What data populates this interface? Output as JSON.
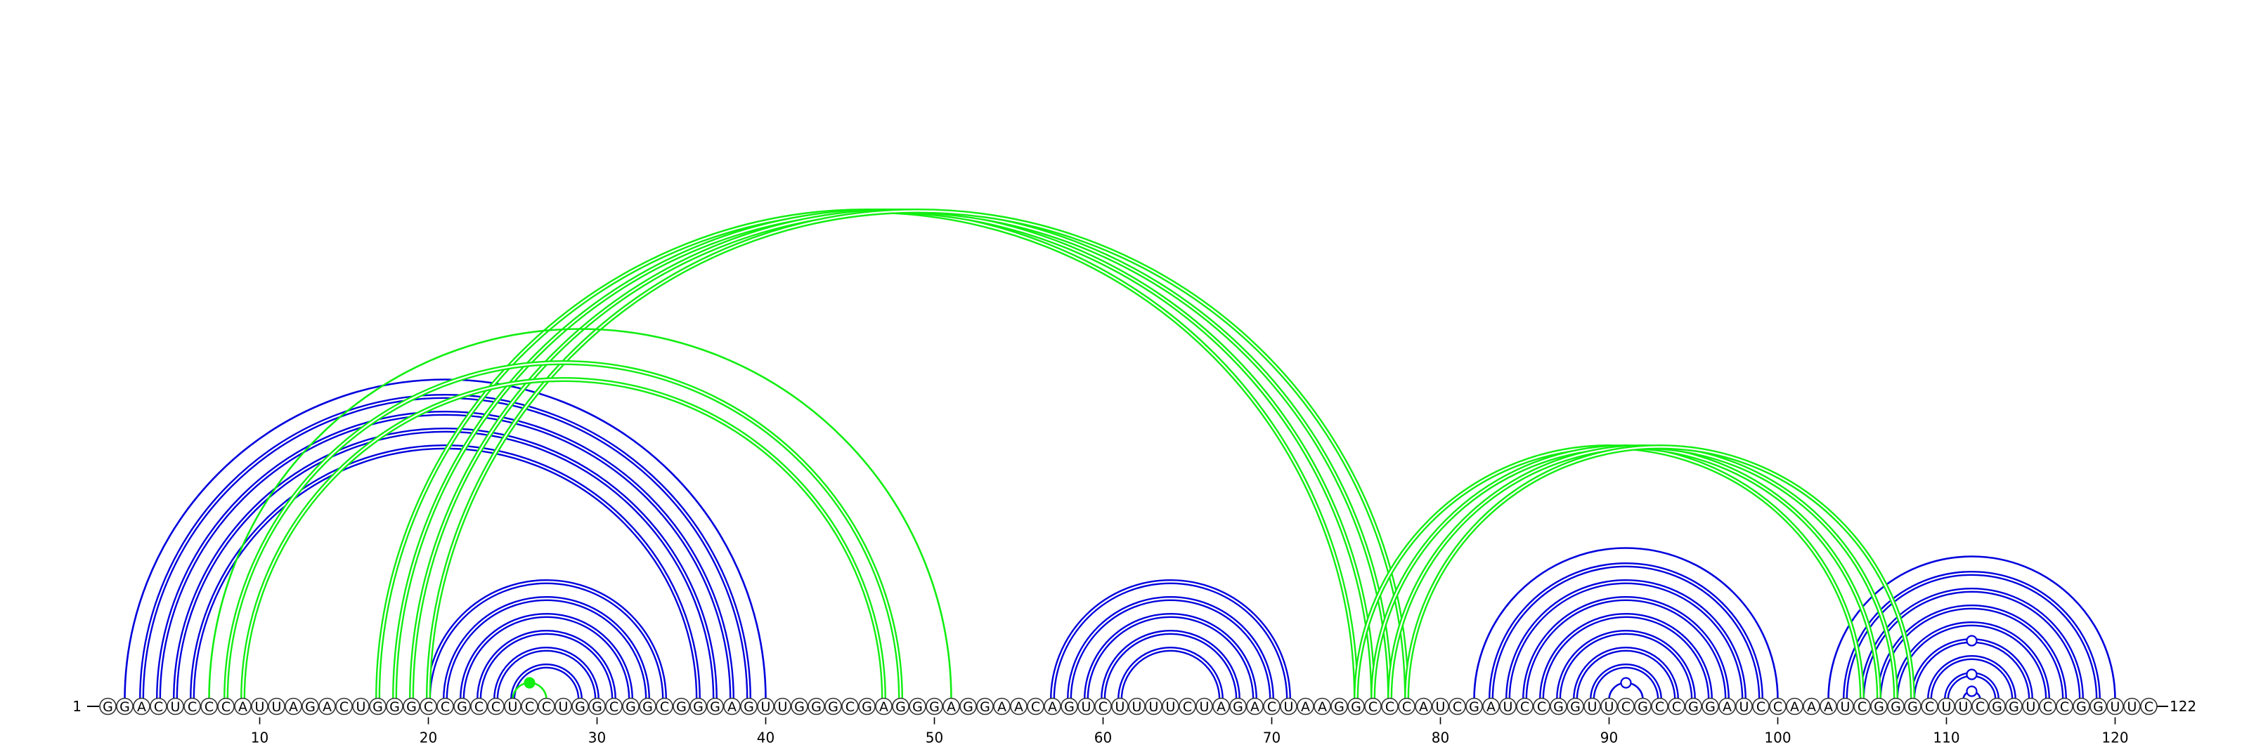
{
  "diagram": {
    "start_label": "1",
    "end_label": "122",
    "sequence": "GGACUCCCAUUAGACUGGGCCGCCUCCUGGCGGCGGGAGUUGGGCGAGGGAGGAACAGUCUUUUCUAGACUAAGGCCCAUCGAUCCGGUUCGCCGGAUCCAAAUCGGGCUUCGGUCCGGUUC",
    "ticks": [
      10,
      20,
      30,
      40,
      50,
      60,
      70,
      80,
      90,
      100,
      110,
      120
    ],
    "colors": {
      "blue": "#0000dd",
      "green": "#11ee11",
      "node_stroke": "#333333",
      "text": "#000000"
    },
    "arc_groups": [
      {
        "color": "blue",
        "style": "double",
        "pairs": [
          [
            3,
            39
          ],
          [
            4,
            38
          ],
          [
            5,
            37
          ],
          [
            6,
            36
          ]
        ]
      },
      {
        "color": "blue",
        "style": "double",
        "pairs": [
          [
            20,
            34
          ],
          [
            21,
            33
          ],
          [
            22,
            32
          ],
          [
            23,
            31
          ],
          [
            24,
            30
          ],
          [
            25,
            29
          ]
        ]
      },
      {
        "color": "blue",
        "style": "double",
        "pairs": [
          [
            57,
            71
          ],
          [
            58,
            70
          ],
          [
            59,
            69
          ],
          [
            60,
            68
          ],
          [
            61,
            67
          ]
        ]
      },
      {
        "color": "blue",
        "style": "double",
        "pairs": [
          [
            83,
            99
          ],
          [
            84,
            98
          ],
          [
            85,
            97
          ],
          [
            86,
            96
          ],
          [
            87,
            95
          ],
          [
            88,
            94
          ],
          [
            89,
            93
          ]
        ]
      },
      {
        "color": "blue",
        "style": "double",
        "pairs": [
          [
            104,
            119
          ],
          [
            105,
            118
          ],
          [
            106,
            117
          ],
          [
            107,
            116
          ],
          [
            108,
            115
          ],
          [
            109,
            114
          ],
          [
            110,
            113
          ]
        ]
      },
      {
        "color": "blue",
        "style": "single",
        "pairs": [
          [
            2,
            40
          ],
          [
            82,
            100
          ],
          [
            90,
            92
          ],
          [
            103,
            120
          ],
          [
            111,
            112
          ]
        ]
      },
      {
        "color": "green",
        "style": "double",
        "pairs": [
          [
            17,
            75
          ],
          [
            18,
            76
          ],
          [
            19,
            77
          ],
          [
            20,
            78
          ]
        ]
      },
      {
        "color": "green",
        "style": "double",
        "pairs": [
          [
            75,
            105
          ],
          [
            76,
            106
          ],
          [
            77,
            107
          ],
          [
            78,
            108
          ]
        ]
      },
      {
        "color": "green",
        "style": "double",
        "pairs": [
          [
            8,
            48
          ],
          [
            9,
            47
          ]
        ]
      },
      {
        "color": "green",
        "style": "single",
        "pairs": [
          [
            7,
            51
          ],
          [
            25,
            27
          ]
        ]
      }
    ],
    "dots": [
      {
        "i": 25,
        "j": 27,
        "color": "green",
        "filled": true
      },
      {
        "i": 90,
        "j": 92,
        "color": "blue",
        "filled": false
      },
      {
        "i": 111,
        "j": 112,
        "color": "blue",
        "filled": false
      },
      {
        "i": 110,
        "j": 113,
        "color": "blue",
        "filled": false
      },
      {
        "i": 108,
        "j": 115,
        "color": "blue",
        "filled": false
      }
    ]
  }
}
